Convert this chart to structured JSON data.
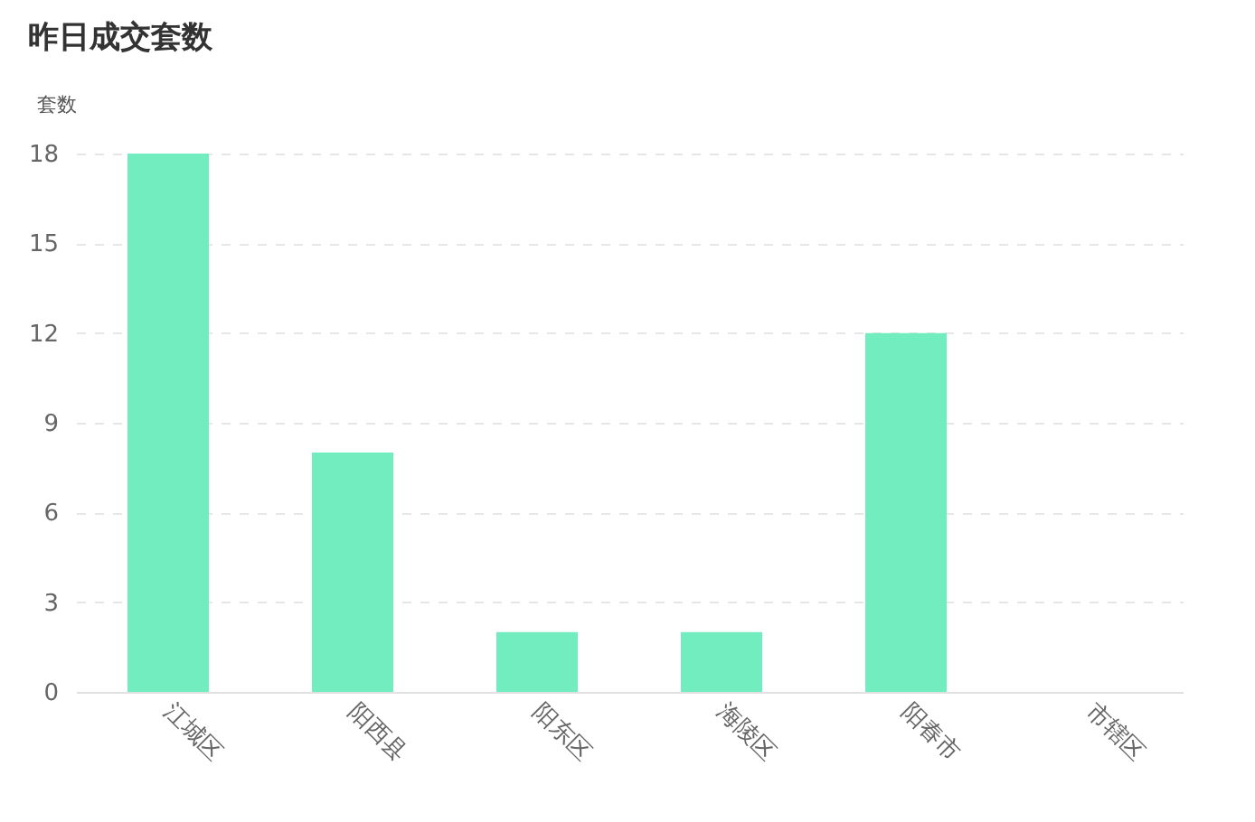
{
  "chart_data": {
    "type": "bar",
    "title": "昨日成交套数",
    "ylabel": "套数",
    "categories": [
      "江城区",
      "阳西县",
      "阳东区",
      "海陵区",
      "阳春市",
      "市辖区"
    ],
    "values": [
      18,
      8,
      2,
      2,
      12,
      0
    ],
    "color": "#72edc0",
    "ylim": [
      0,
      18
    ],
    "yticks": [
      0,
      3,
      6,
      9,
      12,
      15,
      18
    ],
    "grid": "y"
  }
}
